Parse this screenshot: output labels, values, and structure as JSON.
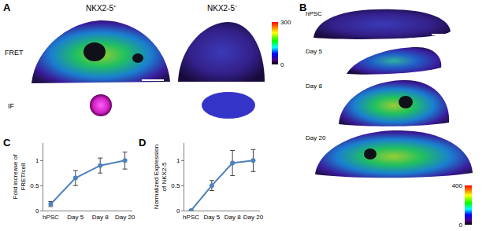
{
  "panels": {
    "A": {
      "label": "A",
      "columns": [
        "NKX2-5⁺",
        "NKX2-5⁻"
      ],
      "rows": [
        "FRET",
        "IF"
      ],
      "colorbar": {
        "range": [
          0,
          300
        ],
        "ticks": [
          0,
          300
        ]
      }
    },
    "B": {
      "label": "B",
      "rows": [
        "hPSC",
        "Day 5",
        "Day 8",
        "Day 20"
      ],
      "colorbar": {
        "range": [
          0,
          400
        ],
        "ticks": [
          0,
          400
        ]
      }
    }
  },
  "chart_data": [
    {
      "panel": "C",
      "type": "line",
      "categories": [
        "hPSC",
        "Day 5",
        "Day 8",
        "Day 20"
      ],
      "values": [
        0.13,
        0.65,
        0.9,
        1.0
      ],
      "error": [
        0.05,
        0.15,
        0.15,
        0.17
      ],
      "ylabel": [
        "Fold increase of",
        "FRET/cell"
      ],
      "ylim": [
        0,
        1.35
      ],
      "yticks": [
        0,
        0.5,
        1
      ],
      "grid": false,
      "color": "#4f81bd",
      "marker": "circle"
    },
    {
      "panel": "D",
      "type": "line",
      "categories": [
        "hPSC",
        "Day 5",
        "Day 8",
        "Day 20"
      ],
      "values": [
        0,
        0.5,
        0.95,
        1.0
      ],
      "error": [
        0,
        0.1,
        0.25,
        0.22
      ],
      "ylabel": [
        "Normalized Expression",
        "of NKX2-5"
      ],
      "ylim": [
        0,
        1.35
      ],
      "yticks": [
        0,
        0.5,
        1
      ],
      "grid": false,
      "color": "#4f81bd",
      "marker": "circle"
    }
  ]
}
